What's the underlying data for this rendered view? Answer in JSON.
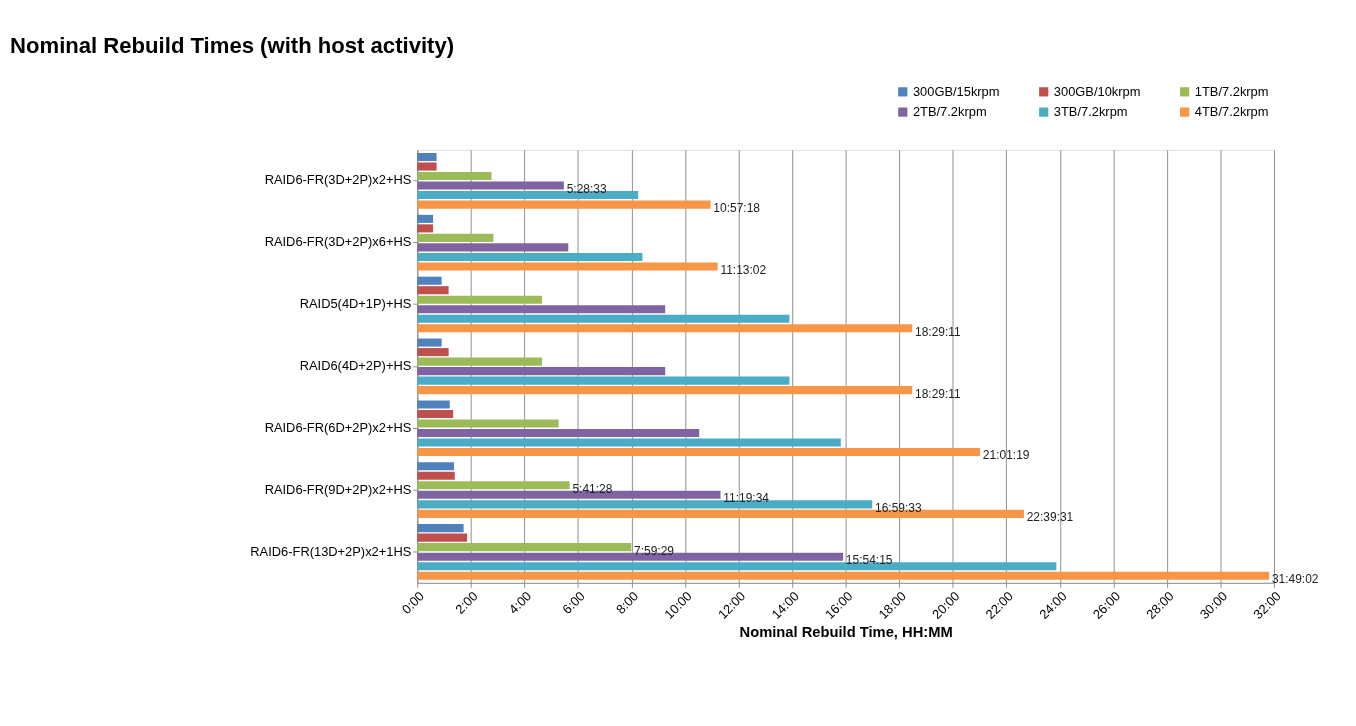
{
  "chart_data": {
    "type": "bar",
    "orientation": "horizontal",
    "title": "Nominal Rebuild Times (with host activity)",
    "xlabel": "Nominal Rebuild Time, HH:MM",
    "categories": [
      "RAID6-FR(3D+2P)x2+HS",
      "RAID6-FR(3D+2P)x6+HS",
      "RAID5(4D+1P)+HS",
      "RAID6(4D+2P)+HS",
      "RAID6-FR(6D+2P)x2+HS",
      "RAID6-FR(9D+2P)x2+HS",
      "RAID6-FR(13D+2P)x2+1HS"
    ],
    "series": [
      {
        "name": "300GB/15krpm",
        "color": "#4f81bd",
        "values": [
          0.72,
          0.59,
          0.91,
          0.91,
          1.21,
          1.37,
          1.73
        ]
      },
      {
        "name": "300GB/10krpm",
        "color": "#c0504d",
        "values": [
          0.72,
          0.59,
          1.17,
          1.17,
          1.34,
          1.4,
          1.86
        ]
      },
      {
        "name": "1TB/7.2krpm",
        "color": "#9bbb59",
        "values": [
          2.77,
          2.84,
          4.66,
          4.66,
          5.28,
          5.69111,
          7.99139
        ],
        "value_labels": [
          null,
          null,
          null,
          null,
          null,
          "5:41:28",
          "7:59:29"
        ]
      },
      {
        "name": "2TB/7.2krpm",
        "color": "#8064a2",
        "values": [
          5.47583,
          5.64,
          9.26,
          9.26,
          10.53,
          11.32611,
          15.90417
        ],
        "value_labels": [
          "5:28:33",
          null,
          null,
          null,
          null,
          "11:19:34",
          "15:54:15"
        ]
      },
      {
        "name": "3TB/7.2krpm",
        "color": "#4bacc6",
        "values": [
          8.25,
          8.41,
          13.9,
          13.9,
          15.82,
          16.9925,
          23.87
        ],
        "value_labels": [
          null,
          null,
          null,
          null,
          null,
          "16:59:33",
          null
        ]
      },
      {
        "name": "4TB/7.2krpm",
        "color": "#f79646",
        "values": [
          10.955,
          11.21722,
          18.48639,
          18.48639,
          21.02194,
          22.65861,
          31.81722
        ],
        "value_labels": [
          "10:57:18",
          "11:13:02",
          "18:29:11",
          "18:29:11",
          "21:01:19",
          "22:39:31",
          "31:49:02"
        ]
      }
    ],
    "xlim": [
      0,
      32
    ],
    "xticks": [
      {
        "value": 0,
        "label": "0:00"
      },
      {
        "value": 2,
        "label": "2:00"
      },
      {
        "value": 4,
        "label": "4:00"
      },
      {
        "value": 6,
        "label": "6:00"
      },
      {
        "value": 8,
        "label": "8:00"
      },
      {
        "value": 10,
        "label": "10:00"
      },
      {
        "value": 12,
        "label": "12:00"
      },
      {
        "value": 14,
        "label": "14:00"
      },
      {
        "value": 16,
        "label": "16:00"
      },
      {
        "value": 18,
        "label": "18:00"
      },
      {
        "value": 20,
        "label": "20:00"
      },
      {
        "value": 22,
        "label": "22:00"
      },
      {
        "value": 24,
        "label": "24:00"
      },
      {
        "value": 26,
        "label": "26:00"
      },
      {
        "value": 28,
        "label": "28:00"
      },
      {
        "value": 30,
        "label": "30:00"
      },
      {
        "value": 32,
        "label": "32:00"
      }
    ],
    "grid": "x",
    "legend": "top right"
  }
}
